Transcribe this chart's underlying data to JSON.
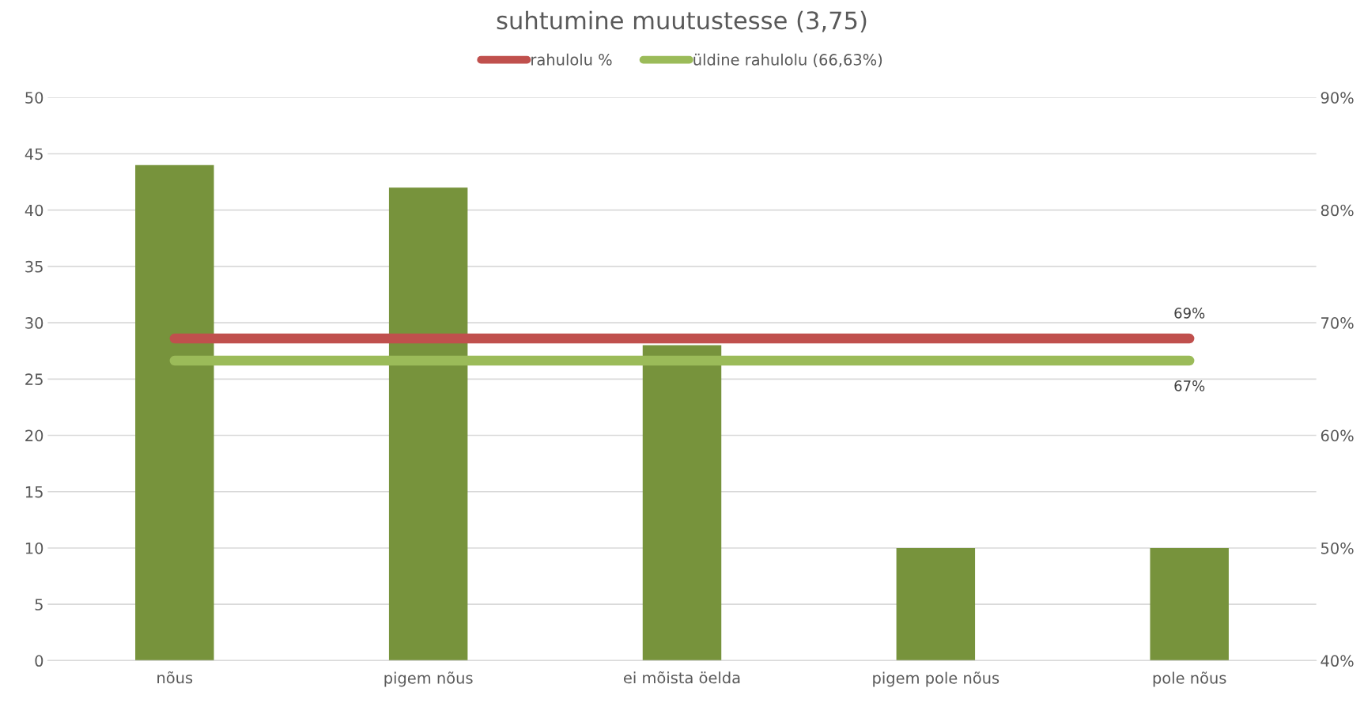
{
  "chart_data": {
    "type": "bar",
    "title": "suhtumine muutustesse (3,75)",
    "categories": [
      "nõus",
      "pigem nõus",
      "ei mõista öelda",
      "pigem pole nõus",
      "pole nõus"
    ],
    "series": [
      {
        "color": "#77933c",
        "values": [
          44,
          42,
          28,
          10,
          10
        ]
      },
      {
        "type": "line",
        "axis": "y2",
        "name": "rahulolu %",
        "color": "#c0504d",
        "values": [
          68.6,
          68.6,
          68.6,
          68.6,
          68.6
        ],
        "value_labels": [
          null,
          null,
          null,
          null,
          "69%"
        ]
      },
      {
        "type": "line",
        "axis": "y2",
        "name": "üldine rahulolu (66,63%)",
        "color": "#9bbb59",
        "values": [
          66.63,
          66.63,
          66.63,
          66.63,
          66.63
        ],
        "value_labels": [
          null,
          null,
          null,
          null,
          "67%"
        ]
      }
    ],
    "ylim": [
      0,
      50
    ],
    "yticks": [
      0,
      5,
      10,
      15,
      20,
      25,
      30,
      35,
      40,
      45,
      50
    ],
    "y2lim": [
      40,
      90
    ],
    "y2ticks": [
      {
        "value": 40,
        "label": "40%"
      },
      {
        "value": 50,
        "label": "50%"
      },
      {
        "value": 60,
        "label": "60%"
      },
      {
        "value": 70,
        "label": "70%"
      },
      {
        "value": 80,
        "label": "80%"
      },
      {
        "value": 90,
        "label": "90%"
      }
    ],
    "grid": "y",
    "legend": "top",
    "line_style": "solid"
  }
}
